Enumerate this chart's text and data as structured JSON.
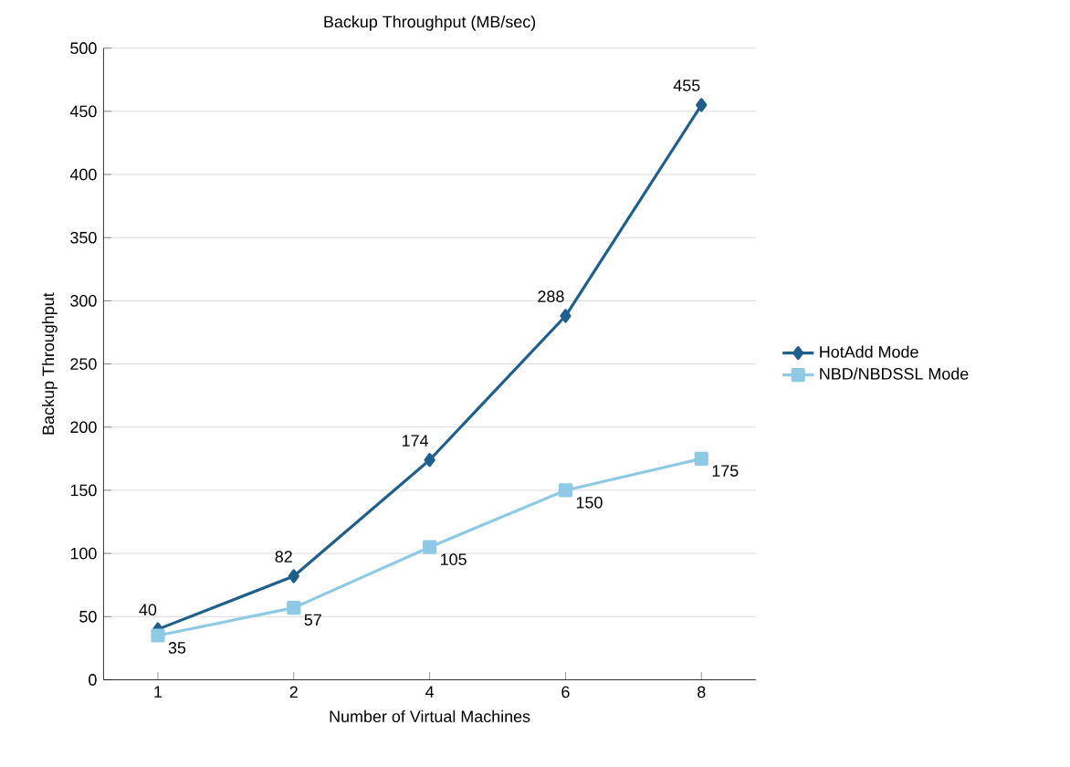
{
  "chart_data": {
    "type": "line",
    "title": "Backup Throughput (MB/sec)",
    "xlabel": "Number of Virtual Machines",
    "ylabel": "Backup Throughput",
    "categories": [
      "1",
      "2",
      "4",
      "6",
      "8"
    ],
    "series": [
      {
        "name": "HotAdd Mode",
        "color": "#1f5f8b",
        "marker": "diamond",
        "values": [
          40,
          82,
          174,
          288,
          455
        ]
      },
      {
        "name": "NBD/NBDSSL Mode",
        "color": "#8ecae6",
        "marker": "square",
        "values": [
          35,
          57,
          105,
          150,
          175
        ]
      }
    ],
    "ylim": [
      0,
      500
    ],
    "yticks": [
      0,
      50,
      100,
      150,
      200,
      250,
      300,
      350,
      400,
      450,
      500
    ],
    "grid": "y",
    "legend": "right",
    "data_labels": true,
    "line_style": "solid"
  }
}
